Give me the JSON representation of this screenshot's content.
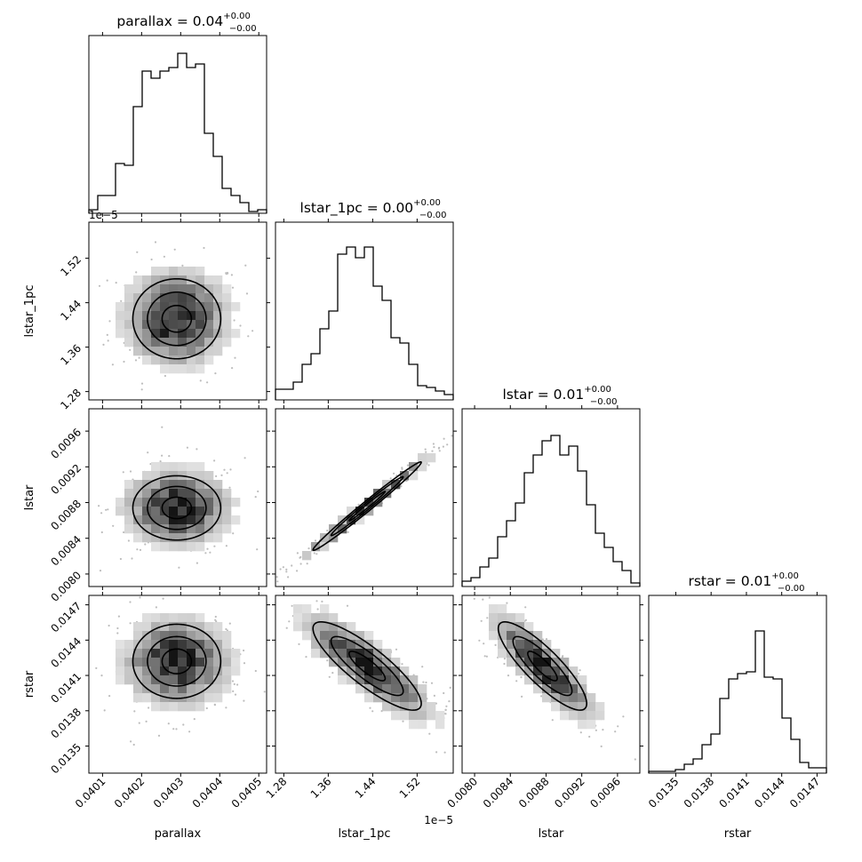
{
  "figure": {
    "type": "corner-plot",
    "variables": [
      "parallax",
      "lstar_1pc",
      "lstar",
      "rstar"
    ]
  },
  "chart_data": {
    "type": "corner",
    "variables": [
      "parallax",
      "lstar_1pc",
      "lstar",
      "rstar"
    ],
    "titles": [
      {
        "main": "parallax = 0.04",
        "sup": "+0.00",
        "sub": "−0.00"
      },
      {
        "main": "lstar_1pc = 0.00",
        "sup": "+0.00",
        "sub": "−0.00"
      },
      {
        "main": "lstar = 0.01",
        "sup": "+0.00",
        "sub": "−0.00"
      },
      {
        "main": "rstar = 0.01",
        "sup": "+0.00",
        "sub": "−0.00"
      }
    ],
    "axes": [
      {
        "name": "parallax",
        "range": [
          0.040065,
          0.04052
        ],
        "ticks": [
          0.0401,
          0.0402,
          0.0403,
          0.0404,
          0.0405
        ],
        "tick_labels": [
          "0.0401",
          "0.0402",
          "0.0403",
          "0.0404",
          "0.0405"
        ],
        "offset": ""
      },
      {
        "name": "lstar_1pc",
        "range": [
          1.265,
          1.585
        ],
        "ticks": [
          1.28,
          1.36,
          1.44,
          1.52
        ],
        "tick_labels": [
          "1.28",
          "1.36",
          "1.44",
          "1.52"
        ],
        "offset": "1e−5"
      },
      {
        "name": "lstar",
        "range": [
          0.00786,
          0.00985
        ],
        "ticks": [
          0.008,
          0.0084,
          0.0088,
          0.0092,
          0.0096
        ],
        "tick_labels": [
          "0.0080",
          "0.0084",
          "0.0088",
          "0.0092",
          "0.0096"
        ],
        "offset": ""
      },
      {
        "name": "rstar",
        "range": [
          0.01327,
          0.01478
        ],
        "ticks": [
          0.0135,
          0.0138,
          0.0141,
          0.0144,
          0.0147
        ],
        "tick_labels": [
          "0.0135",
          "0.0138",
          "0.0141",
          "0.0144",
          "0.0147"
        ],
        "offset": ""
      }
    ],
    "histograms": [
      [
        0.02,
        0.1,
        0.1,
        0.28,
        0.27,
        0.6,
        0.8,
        0.76,
        0.8,
        0.82,
        0.9,
        0.82,
        0.84,
        0.45,
        0.32,
        0.14,
        0.1,
        0.06,
        0.01,
        0.02
      ],
      [
        0.06,
        0.06,
        0.1,
        0.2,
        0.26,
        0.4,
        0.5,
        0.82,
        0.86,
        0.8,
        0.86,
        0.64,
        0.56,
        0.35,
        0.32,
        0.2,
        0.08,
        0.07,
        0.05,
        0.03
      ],
      [
        0.03,
        0.05,
        0.11,
        0.16,
        0.28,
        0.37,
        0.47,
        0.64,
        0.74,
        0.82,
        0.85,
        0.74,
        0.79,
        0.65,
        0.46,
        0.3,
        0.22,
        0.14,
        0.09,
        0.02
      ],
      [
        0.01,
        0.01,
        0.01,
        0.02,
        0.05,
        0.08,
        0.16,
        0.22,
        0.42,
        0.53,
        0.56,
        0.57,
        0.8,
        0.54,
        0.53,
        0.31,
        0.19,
        0.06,
        0.03,
        0.03
      ]
    ],
    "pairs": [
      {
        "x": 0,
        "y": 1,
        "center": [
          0.04029,
          1.411
        ],
        "sigma": [
          7.5e-05,
          0.048
        ],
        "rho": 0.0
      },
      {
        "x": 0,
        "y": 2,
        "center": [
          0.04029,
          0.00874
        ],
        "sigma": [
          7.5e-05,
          0.00024
        ],
        "rho": 0.0
      },
      {
        "x": 1,
        "y": 2,
        "center": [
          1.43,
          0.00876
        ],
        "sigma": [
          0.065,
          0.00033
        ],
        "rho": 0.99
      },
      {
        "x": 0,
        "y": 3,
        "center": [
          0.04029,
          0.01422
        ],
        "sigma": [
          7.5e-05,
          0.00021
        ],
        "rho": 0.0
      },
      {
        "x": 1,
        "y": 3,
        "center": [
          1.43,
          0.01418
        ],
        "sigma": [
          0.065,
          0.00025
        ],
        "rho": -0.85
      },
      {
        "x": 2,
        "y": 3,
        "center": [
          0.00876,
          0.01418
        ],
        "sigma": [
          0.00033,
          0.00025
        ],
        "rho": -0.85
      }
    ],
    "contour_levels": [
      0.5,
      1.0,
      1.5
    ]
  }
}
